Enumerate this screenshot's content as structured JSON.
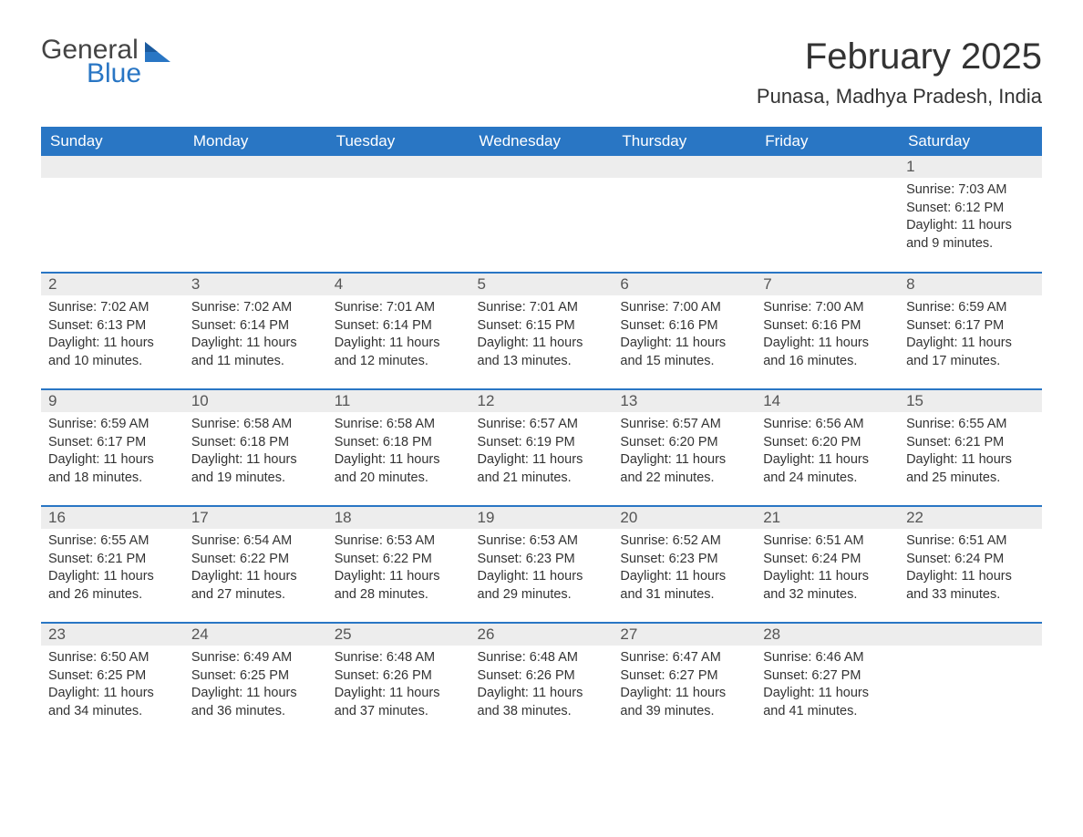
{
  "logo": {
    "line1": "General",
    "line2": "Blue",
    "accent_color": "#2976c4"
  },
  "title": "February 2025",
  "location": "Punasa, Madhya Pradesh, India",
  "colors": {
    "header_bg": "#2976c4",
    "header_text": "#ffffff",
    "daynum_bg": "#ededed",
    "row_border": "#2976c4",
    "text": "#333333",
    "background": "#ffffff"
  },
  "weekdays": [
    "Sunday",
    "Monday",
    "Tuesday",
    "Wednesday",
    "Thursday",
    "Friday",
    "Saturday"
  ],
  "weeks": [
    [
      null,
      null,
      null,
      null,
      null,
      null,
      {
        "num": "1",
        "sunrise": "Sunrise: 7:03 AM",
        "sunset": "Sunset: 6:12 PM",
        "daylight": "Daylight: 11 hours and 9 minutes."
      }
    ],
    [
      {
        "num": "2",
        "sunrise": "Sunrise: 7:02 AM",
        "sunset": "Sunset: 6:13 PM",
        "daylight": "Daylight: 11 hours and 10 minutes."
      },
      {
        "num": "3",
        "sunrise": "Sunrise: 7:02 AM",
        "sunset": "Sunset: 6:14 PM",
        "daylight": "Daylight: 11 hours and 11 minutes."
      },
      {
        "num": "4",
        "sunrise": "Sunrise: 7:01 AM",
        "sunset": "Sunset: 6:14 PM",
        "daylight": "Daylight: 11 hours and 12 minutes."
      },
      {
        "num": "5",
        "sunrise": "Sunrise: 7:01 AM",
        "sunset": "Sunset: 6:15 PM",
        "daylight": "Daylight: 11 hours and 13 minutes."
      },
      {
        "num": "6",
        "sunrise": "Sunrise: 7:00 AM",
        "sunset": "Sunset: 6:16 PM",
        "daylight": "Daylight: 11 hours and 15 minutes."
      },
      {
        "num": "7",
        "sunrise": "Sunrise: 7:00 AM",
        "sunset": "Sunset: 6:16 PM",
        "daylight": "Daylight: 11 hours and 16 minutes."
      },
      {
        "num": "8",
        "sunrise": "Sunrise: 6:59 AM",
        "sunset": "Sunset: 6:17 PM",
        "daylight": "Daylight: 11 hours and 17 minutes."
      }
    ],
    [
      {
        "num": "9",
        "sunrise": "Sunrise: 6:59 AM",
        "sunset": "Sunset: 6:17 PM",
        "daylight": "Daylight: 11 hours and 18 minutes."
      },
      {
        "num": "10",
        "sunrise": "Sunrise: 6:58 AM",
        "sunset": "Sunset: 6:18 PM",
        "daylight": "Daylight: 11 hours and 19 minutes."
      },
      {
        "num": "11",
        "sunrise": "Sunrise: 6:58 AM",
        "sunset": "Sunset: 6:18 PM",
        "daylight": "Daylight: 11 hours and 20 minutes."
      },
      {
        "num": "12",
        "sunrise": "Sunrise: 6:57 AM",
        "sunset": "Sunset: 6:19 PM",
        "daylight": "Daylight: 11 hours and 21 minutes."
      },
      {
        "num": "13",
        "sunrise": "Sunrise: 6:57 AM",
        "sunset": "Sunset: 6:20 PM",
        "daylight": "Daylight: 11 hours and 22 minutes."
      },
      {
        "num": "14",
        "sunrise": "Sunrise: 6:56 AM",
        "sunset": "Sunset: 6:20 PM",
        "daylight": "Daylight: 11 hours and 24 minutes."
      },
      {
        "num": "15",
        "sunrise": "Sunrise: 6:55 AM",
        "sunset": "Sunset: 6:21 PM",
        "daylight": "Daylight: 11 hours and 25 minutes."
      }
    ],
    [
      {
        "num": "16",
        "sunrise": "Sunrise: 6:55 AM",
        "sunset": "Sunset: 6:21 PM",
        "daylight": "Daylight: 11 hours and 26 minutes."
      },
      {
        "num": "17",
        "sunrise": "Sunrise: 6:54 AM",
        "sunset": "Sunset: 6:22 PM",
        "daylight": "Daylight: 11 hours and 27 minutes."
      },
      {
        "num": "18",
        "sunrise": "Sunrise: 6:53 AM",
        "sunset": "Sunset: 6:22 PM",
        "daylight": "Daylight: 11 hours and 28 minutes."
      },
      {
        "num": "19",
        "sunrise": "Sunrise: 6:53 AM",
        "sunset": "Sunset: 6:23 PM",
        "daylight": "Daylight: 11 hours and 29 minutes."
      },
      {
        "num": "20",
        "sunrise": "Sunrise: 6:52 AM",
        "sunset": "Sunset: 6:23 PM",
        "daylight": "Daylight: 11 hours and 31 minutes."
      },
      {
        "num": "21",
        "sunrise": "Sunrise: 6:51 AM",
        "sunset": "Sunset: 6:24 PM",
        "daylight": "Daylight: 11 hours and 32 minutes."
      },
      {
        "num": "22",
        "sunrise": "Sunrise: 6:51 AM",
        "sunset": "Sunset: 6:24 PM",
        "daylight": "Daylight: 11 hours and 33 minutes."
      }
    ],
    [
      {
        "num": "23",
        "sunrise": "Sunrise: 6:50 AM",
        "sunset": "Sunset: 6:25 PM",
        "daylight": "Daylight: 11 hours and 34 minutes."
      },
      {
        "num": "24",
        "sunrise": "Sunrise: 6:49 AM",
        "sunset": "Sunset: 6:25 PM",
        "daylight": "Daylight: 11 hours and 36 minutes."
      },
      {
        "num": "25",
        "sunrise": "Sunrise: 6:48 AM",
        "sunset": "Sunset: 6:26 PM",
        "daylight": "Daylight: 11 hours and 37 minutes."
      },
      {
        "num": "26",
        "sunrise": "Sunrise: 6:48 AM",
        "sunset": "Sunset: 6:26 PM",
        "daylight": "Daylight: 11 hours and 38 minutes."
      },
      {
        "num": "27",
        "sunrise": "Sunrise: 6:47 AM",
        "sunset": "Sunset: 6:27 PM",
        "daylight": "Daylight: 11 hours and 39 minutes."
      },
      {
        "num": "28",
        "sunrise": "Sunrise: 6:46 AM",
        "sunset": "Sunset: 6:27 PM",
        "daylight": "Daylight: 11 hours and 41 minutes."
      },
      null
    ]
  ]
}
